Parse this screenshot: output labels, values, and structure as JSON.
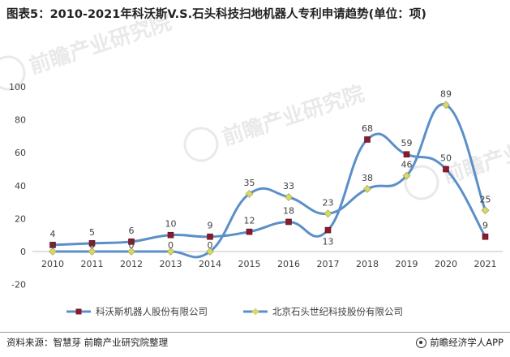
{
  "title": "图表5：2010-2021年科沃斯V.S.石头科技扫地机器人专利申请趋势(单位：项)",
  "source": "资料来源：智慧芽 前瞻产业研究院整理",
  "brand": "前瞻经济学人APP",
  "watermark": "前瞻产业研究院",
  "colors": {
    "line": "#5b8fc9",
    "series1_marker": "#8b1a2b",
    "series2_marker": "#d8d86a",
    "axis": "#bfbfbf",
    "text": "#404040"
  },
  "chart_data": {
    "type": "line",
    "title": "图表5：2010-2021年科沃斯V.S.石头科技扫地机器人专利申请趋势(单位：项)",
    "xlabel": "",
    "ylabel": "",
    "categories": [
      "2010",
      "2011",
      "2012",
      "2013",
      "2014",
      "2015",
      "2016",
      "2017",
      "2018",
      "2019",
      "2020",
      "2021"
    ],
    "ylim": [
      -20,
      100
    ],
    "yticks": [
      -20,
      0,
      20,
      40,
      60,
      80,
      100
    ],
    "grid": false,
    "legend": "bottom",
    "series": [
      {
        "name": "科沃斯机器人股份有限公司",
        "values": [
          4,
          5,
          6,
          10,
          9,
          12,
          18,
          13,
          68,
          59,
          50,
          9
        ],
        "marker": "square"
      },
      {
        "name": "北京石头世纪科技股份有限公司",
        "values": [
          0,
          0,
          0,
          0,
          0,
          35,
          33,
          23,
          38,
          46,
          89,
          25
        ],
        "marker": "diamond"
      }
    ]
  }
}
